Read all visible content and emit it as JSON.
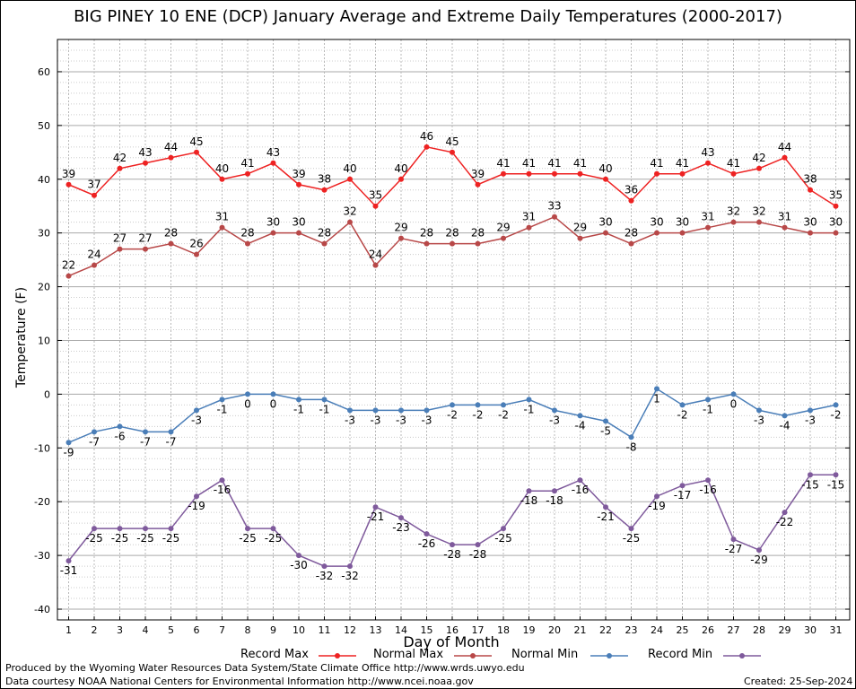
{
  "chart_data": {
    "type": "line",
    "title": "BIG PINEY 10 ENE (DCP) January Average and Extreme Daily Temperatures (2000-2017)",
    "xlabel": "Day of Month",
    "ylabel": "Temperature (F)",
    "ylim": [
      -42,
      66
    ],
    "yticks": [
      -40,
      -30,
      -20,
      -10,
      0,
      10,
      20,
      30,
      40,
      50,
      60
    ],
    "x": [
      1,
      2,
      3,
      4,
      5,
      6,
      7,
      8,
      9,
      10,
      11,
      12,
      13,
      14,
      15,
      16,
      17,
      18,
      19,
      20,
      21,
      22,
      23,
      24,
      25,
      26,
      27,
      28,
      29,
      30,
      31
    ],
    "grid": true,
    "legend_position": "bottom",
    "series": [
      {
        "name": "Record Max",
        "color": "#ee2222",
        "values": [
          39,
          37,
          42,
          43,
          44,
          45,
          40,
          41,
          43,
          39,
          38,
          40,
          35,
          40,
          46,
          45,
          39,
          41,
          41,
          41,
          41,
          40,
          36,
          41,
          41,
          43,
          41,
          42,
          44,
          38,
          35
        ]
      },
      {
        "name": "Normal Max",
        "color": "#b84848",
        "values": [
          22,
          24,
          27,
          27,
          28,
          26,
          31,
          28,
          30,
          30,
          28,
          32,
          24,
          29,
          28,
          28,
          28,
          29,
          31,
          33,
          29,
          30,
          28,
          30,
          30,
          31,
          32,
          32,
          31,
          30,
          30
        ]
      },
      {
        "name": "Normal Min",
        "color": "#4a7eb8",
        "values": [
          -9,
          -7,
          -6,
          -7,
          -7,
          -3,
          -1,
          0,
          0,
          -1,
          -1,
          -3,
          -3,
          -3,
          -3,
          -2,
          -2,
          -2,
          -1,
          -3,
          -4,
          -5,
          -8,
          1,
          -2,
          -1,
          0,
          -3,
          -4,
          -3,
          -2
        ]
      },
      {
        "name": "Record Min",
        "color": "#7f5a9c",
        "values": [
          -31,
          -25,
          -25,
          -25,
          -25,
          -19,
          -16,
          -25,
          -25,
          -30,
          -32,
          -32,
          -21,
          -23,
          -26,
          -28,
          -28,
          -25,
          -18,
          -18,
          -16,
          -21,
          -25,
          -19,
          -17,
          -16,
          -27,
          -29,
          -22,
          -15,
          -15
        ]
      }
    ]
  },
  "footer": {
    "produced_by": "Produced by the Wyoming Water Resources Data System/State Climate Office http://www.wrds.uwyo.edu",
    "data_courtesy": "Data courtesy NOAA National Centers for Environmental Information http://www.ncei.noaa.gov",
    "created": "Created: 25-Sep-2024"
  }
}
